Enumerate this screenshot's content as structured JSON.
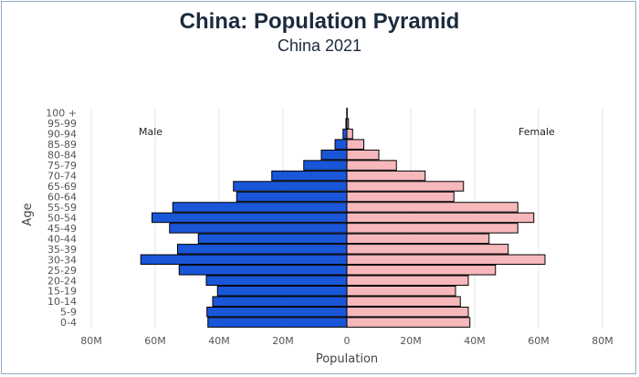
{
  "chart_data": {
    "type": "bar",
    "orientation": "horizontal-pyramid",
    "title": "China: Population Pyramid",
    "subtitle": "China 2021",
    "xlabel": "Population",
    "ylabel": "Age",
    "xlim": [
      -80000000,
      80000000
    ],
    "x_ticks": [
      "80M",
      "60M",
      "40M",
      "20M",
      "0",
      "20M",
      "40M",
      "60M",
      "80M"
    ],
    "grid": true,
    "categories": [
      "0-4",
      "5-9",
      "10-14",
      "15-19",
      "20-24",
      "25-29",
      "30-34",
      "35-39",
      "40-44",
      "45-49",
      "50-54",
      "55-59",
      "60-64",
      "65-69",
      "70-74",
      "75-79",
      "80-84",
      "85-89",
      "90-94",
      "95-99",
      "100 +"
    ],
    "series": [
      {
        "name": "Male",
        "color": "#1a56d8",
        "values": [
          43500000,
          43800000,
          42000000,
          40500000,
          44000000,
          52500000,
          64500000,
          53000000,
          46500000,
          55500000,
          61000000,
          54500000,
          34500000,
          35500000,
          23500000,
          13500000,
          8000000,
          3700000,
          1200000,
          300000,
          50000
        ]
      },
      {
        "name": "Female",
        "color": "#f7b8bb",
        "values": [
          38500000,
          38000000,
          35500000,
          34000000,
          38000000,
          46500000,
          62000000,
          50500000,
          44500000,
          53500000,
          58500000,
          53500000,
          33500000,
          36500000,
          24500000,
          15500000,
          10000000,
          5300000,
          1800000,
          500000,
          100000
        ]
      }
    ]
  }
}
